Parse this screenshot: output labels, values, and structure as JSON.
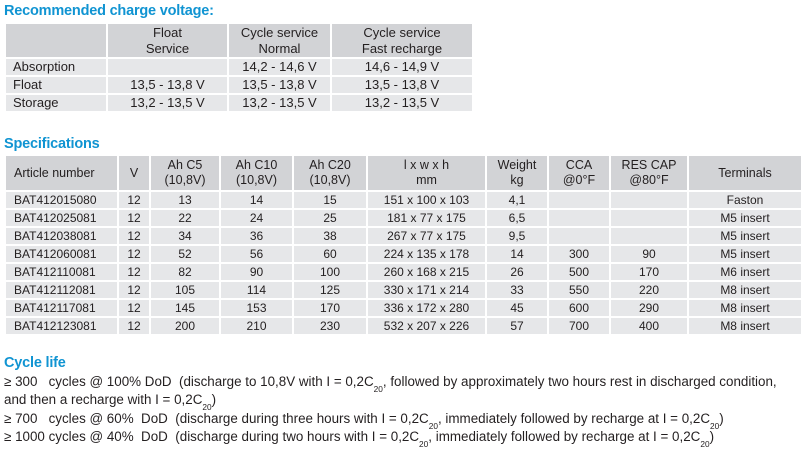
{
  "colors": {
    "heading_blue": "#1094d2",
    "table_header_bg": "#d2d3d6",
    "table_row_bg": "#e6e7e9",
    "text": "#231f20"
  },
  "charge_voltage": {
    "title": "Recommended charge voltage:",
    "columns": [
      [
        ""
      ],
      [
        "Float",
        "Service"
      ],
      [
        "Cycle service",
        "Normal"
      ],
      [
        "Cycle service",
        "Fast recharge"
      ]
    ],
    "rows": [
      [
        "Absorption",
        "",
        "14,2 - 14,6 V",
        "14,6 - 14,9 V"
      ],
      [
        "Float",
        "13,5 - 13,8 V",
        "13,5 - 13,8 V",
        "13,5 - 13,8 V"
      ],
      [
        "Storage",
        "13,2 - 13,5 V",
        "13,2 - 13,5 V",
        "13,2 - 13,5 V"
      ]
    ]
  },
  "specifications": {
    "title": "Specifications",
    "columns": [
      [
        "Article number"
      ],
      [
        "V"
      ],
      [
        "Ah C5",
        "(10,8V)"
      ],
      [
        "Ah C10",
        "(10,8V)"
      ],
      [
        "Ah C20",
        "(10,8V)"
      ],
      [
        "l x w x h",
        "mm"
      ],
      [
        "Weight",
        "kg"
      ],
      [
        "CCA",
        "@0°F"
      ],
      [
        "RES CAP",
        "@80°F"
      ],
      [
        "Terminals"
      ]
    ],
    "rows": [
      [
        "BAT412015080",
        "12",
        "13",
        "14",
        "15",
        "151 x 100 x 103",
        "4,1",
        "",
        "",
        "Faston"
      ],
      [
        "BAT412025081",
        "12",
        "22",
        "24",
        "25",
        "181 x 77 x 175",
        "6,5",
        "",
        "",
        "M5 insert"
      ],
      [
        "BAT412038081",
        "12",
        "34",
        "36",
        "38",
        "267 x 77 x 175",
        "9,5",
        "",
        "",
        "M5 insert"
      ],
      [
        "BAT412060081",
        "12",
        "52",
        "56",
        "60",
        "224 x 135 x 178",
        "14",
        "300",
        "90",
        "M5 insert"
      ],
      [
        "BAT412110081",
        "12",
        "82",
        "90",
        "100",
        "260 x 168 x 215",
        "26",
        "500",
        "170",
        "M6 insert"
      ],
      [
        "BAT412112081",
        "12",
        "105",
        "114",
        "125",
        "330 x 171 x 214",
        "33",
        "550",
        "220",
        "M8 insert"
      ],
      [
        "BAT412117081",
        "12",
        "145",
        "153",
        "170",
        "336 x 172 x 280",
        "45",
        "600",
        "290",
        "M8 insert"
      ],
      [
        "BAT412123081",
        "12",
        "200",
        "210",
        "230",
        "532 x 207 x 226",
        "57",
        "700",
        "400",
        "M8 insert"
      ]
    ]
  },
  "cycle_life": {
    "title": "Cycle life",
    "lines": [
      "≥ 300   cycles @ 100% DoD  (discharge to 10,8V with I = 0,2C_{20}, followed by approximately two hours rest in discharged condition,",
      "and then a recharge with I = 0,2C_{20})",
      "≥ 700   cycles @ 60%  DoD  (discharge during three hours with I = 0,2C_{20}, immediately followed by recharge at I = 0,2C_{20})",
      "≥ 1000 cycles @ 40%  DoD  (discharge during two hours with I = 0,2C_{20}, immediately followed by recharge at I = 0,2C_{20})"
    ]
  }
}
